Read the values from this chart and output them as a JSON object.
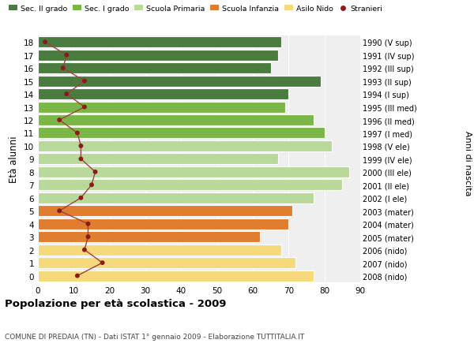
{
  "ages": [
    18,
    17,
    16,
    15,
    14,
    13,
    12,
    11,
    10,
    9,
    8,
    7,
    6,
    5,
    4,
    3,
    2,
    1,
    0
  ],
  "bar_values": [
    68,
    67,
    65,
    79,
    70,
    69,
    77,
    80,
    82,
    67,
    87,
    85,
    77,
    71,
    70,
    62,
    68,
    72,
    77
  ],
  "bar_colors": [
    "#4a7c3f",
    "#4a7c3f",
    "#4a7c3f",
    "#4a7c3f",
    "#4a7c3f",
    "#7ab648",
    "#7ab648",
    "#7ab648",
    "#b8d99a",
    "#b8d99a",
    "#b8d99a",
    "#b8d99a",
    "#b8d99a",
    "#e07d2e",
    "#e07d2e",
    "#e07d2e",
    "#f5d97a",
    "#f5d97a",
    "#f5d97a"
  ],
  "stranieri_values": [
    2,
    8,
    7,
    13,
    8,
    13,
    6,
    11,
    12,
    12,
    16,
    15,
    12,
    6,
    14,
    14,
    13,
    18,
    11
  ],
  "right_labels": [
    "1990 (V sup)",
    "1991 (IV sup)",
    "1992 (III sup)",
    "1993 (II sup)",
    "1994 (I sup)",
    "1995 (III med)",
    "1996 (II med)",
    "1997 (I med)",
    "1998 (V ele)",
    "1999 (IV ele)",
    "2000 (III ele)",
    "2001 (II ele)",
    "2002 (I ele)",
    "2003 (mater)",
    "2004 (mater)",
    "2005 (mater)",
    "2006 (nido)",
    "2007 (nido)",
    "2008 (nido)"
  ],
  "legend_labels": [
    "Sec. II grado",
    "Sec. I grado",
    "Scuola Primaria",
    "Scuola Infanzia",
    "Asilo Nido",
    "Stranieri"
  ],
  "legend_colors": [
    "#4a7c3f",
    "#7ab648",
    "#b8d99a",
    "#e07d2e",
    "#f5d97a",
    "#8b1a1a"
  ],
  "title": "Popolazione per età scolastica - 2009",
  "subtitle": "COMUNE DI PREDAIA (TN) - Dati ISTAT 1° gennaio 2009 - Elaborazione TUTTITALIA.IT",
  "ylabel_left": "Età alunni",
  "ylabel_right": "Anni di nascita",
  "xlim": [
    0,
    90
  ],
  "xticks": [
    0,
    10,
    20,
    30,
    40,
    50,
    60,
    70,
    80,
    90
  ],
  "bg_color": "#ffffff",
  "plot_bg_color": "#efefef",
  "bar_height": 0.85,
  "stranieri_color": "#8b1a1a",
  "line_color": "#a04040"
}
